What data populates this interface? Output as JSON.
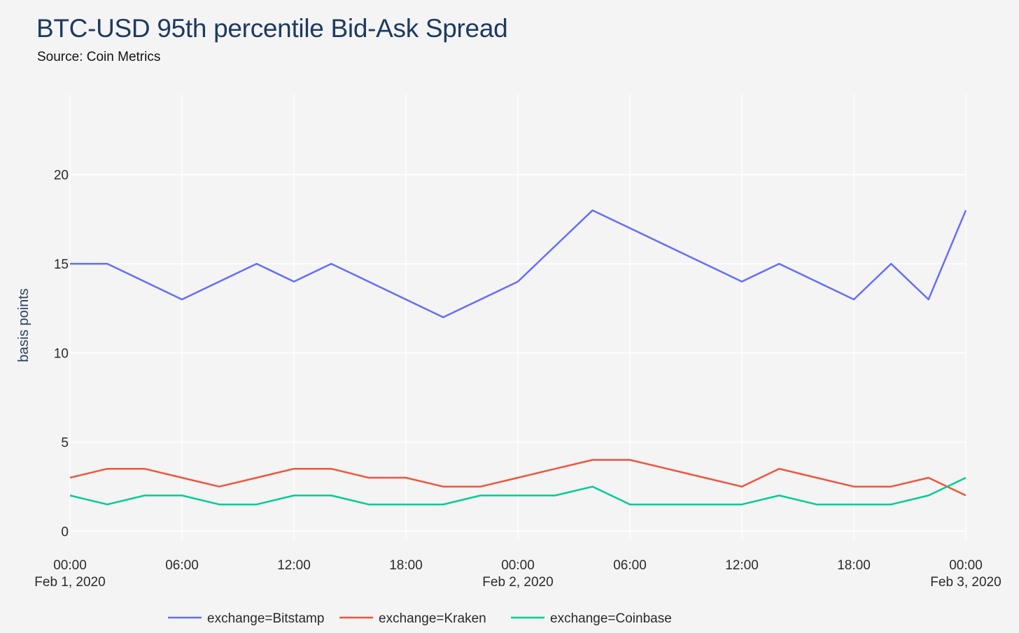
{
  "chart_data": {
    "type": "line",
    "title": "BTC-USD 95th percentile Bid-Ask Spread",
    "subtitle": "Source: Coin Metrics",
    "xlabel": "",
    "ylabel": "basis points",
    "x_range": [
      "2020-02-01 00:00",
      "2020-02-03 00:00"
    ],
    "ylim": [
      -1.2,
      24.5
    ],
    "y_ticks": [
      0,
      5,
      10,
      15,
      20
    ],
    "x_ticks": [
      {
        "time": "2020-02-01 00:00",
        "label": "00:00",
        "sublabel": "Feb 1, 2020"
      },
      {
        "time": "2020-02-01 06:00",
        "label": "06:00",
        "sublabel": ""
      },
      {
        "time": "2020-02-01 12:00",
        "label": "12:00",
        "sublabel": ""
      },
      {
        "time": "2020-02-01 18:00",
        "label": "18:00",
        "sublabel": ""
      },
      {
        "time": "2020-02-02 00:00",
        "label": "00:00",
        "sublabel": "Feb 2, 2020"
      },
      {
        "time": "2020-02-02 06:00",
        "label": "06:00",
        "sublabel": ""
      },
      {
        "time": "2020-02-02 12:00",
        "label": "12:00",
        "sublabel": ""
      },
      {
        "time": "2020-02-02 18:00",
        "label": "18:00",
        "sublabel": ""
      },
      {
        "time": "2020-02-03 00:00",
        "label": "00:00",
        "sublabel": "Feb 3, 2020"
      }
    ],
    "grid": true,
    "legend_position": "bottom",
    "series": [
      {
        "name": "exchange=Bitstamp",
        "color": "#636efa",
        "x": [
          "2020-02-01 00:00",
          "2020-02-01 02:00",
          "2020-02-01 04:00",
          "2020-02-01 06:00",
          "2020-02-01 08:00",
          "2020-02-01 10:00",
          "2020-02-01 12:00",
          "2020-02-01 14:00",
          "2020-02-01 16:00",
          "2020-02-01 18:00",
          "2020-02-01 20:00",
          "2020-02-01 22:00",
          "2020-02-02 00:00",
          "2020-02-02 02:00",
          "2020-02-02 04:00",
          "2020-02-02 06:00",
          "2020-02-02 08:00",
          "2020-02-02 10:00",
          "2020-02-02 12:00",
          "2020-02-02 14:00",
          "2020-02-02 16:00",
          "2020-02-02 18:00",
          "2020-02-02 20:00",
          "2020-02-02 22:00",
          "2020-02-03 00:00"
        ],
        "values": [
          15,
          15,
          14,
          13,
          14,
          15,
          14,
          15,
          14,
          13,
          12,
          13,
          14,
          16,
          18,
          17,
          16,
          15,
          14,
          15,
          14,
          13,
          15,
          13,
          18
        ]
      },
      {
        "name": "exchange=Kraken",
        "color": "#ef553b",
        "x": [
          "2020-02-01 00:00",
          "2020-02-01 02:00",
          "2020-02-01 04:00",
          "2020-02-01 06:00",
          "2020-02-01 08:00",
          "2020-02-01 10:00",
          "2020-02-01 12:00",
          "2020-02-01 14:00",
          "2020-02-01 16:00",
          "2020-02-01 18:00",
          "2020-02-01 20:00",
          "2020-02-01 22:00",
          "2020-02-02 00:00",
          "2020-02-02 02:00",
          "2020-02-02 04:00",
          "2020-02-02 06:00",
          "2020-02-02 08:00",
          "2020-02-02 10:00",
          "2020-02-02 12:00",
          "2020-02-02 14:00",
          "2020-02-02 16:00",
          "2020-02-02 18:00",
          "2020-02-02 20:00",
          "2020-02-02 22:00",
          "2020-02-03 00:00"
        ],
        "values": [
          3,
          3.5,
          3.5,
          3,
          2.5,
          3,
          3.5,
          3.5,
          3,
          3,
          2.5,
          2.5,
          3,
          3.5,
          4,
          4,
          3.5,
          3,
          2.5,
          3.5,
          3,
          2.5,
          2.5,
          3,
          2
        ]
      },
      {
        "name": "exchange=Coinbase",
        "color": "#00cc96",
        "x": [
          "2020-02-01 00:00",
          "2020-02-01 02:00",
          "2020-02-01 04:00",
          "2020-02-01 06:00",
          "2020-02-01 08:00",
          "2020-02-01 10:00",
          "2020-02-01 12:00",
          "2020-02-01 14:00",
          "2020-02-01 16:00",
          "2020-02-01 18:00",
          "2020-02-01 20:00",
          "2020-02-01 22:00",
          "2020-02-02 00:00",
          "2020-02-02 02:00",
          "2020-02-02 04:00",
          "2020-02-02 06:00",
          "2020-02-02 08:00",
          "2020-02-02 10:00",
          "2020-02-02 12:00",
          "2020-02-02 14:00",
          "2020-02-02 16:00",
          "2020-02-02 18:00",
          "2020-02-02 20:00",
          "2020-02-02 22:00",
          "2020-02-03 00:00"
        ],
        "values": [
          2,
          1.5,
          2,
          2,
          1.5,
          1.5,
          2,
          2,
          1.5,
          1.5,
          1.5,
          2,
          2,
          2,
          2.5,
          1.5,
          1.5,
          1.5,
          1.5,
          2,
          1.5,
          1.5,
          1.5,
          2,
          3
        ]
      }
    ]
  }
}
